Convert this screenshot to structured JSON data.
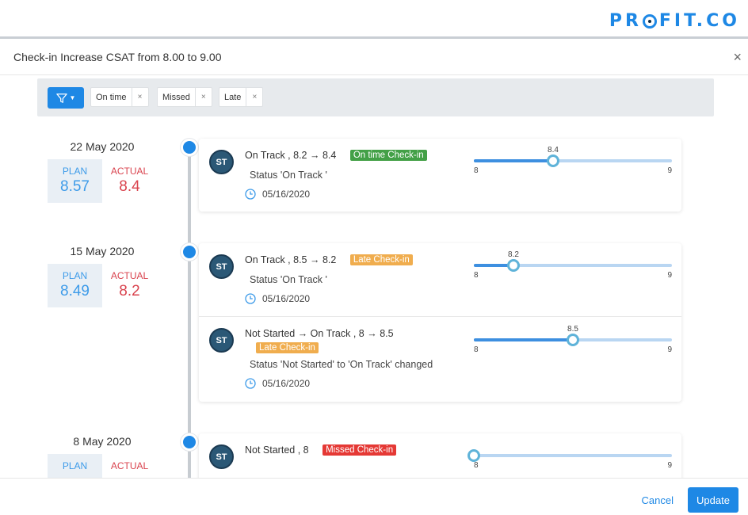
{
  "brand": {
    "logo_pre": "PR",
    "logo_post": "FIT.CO"
  },
  "modal": {
    "title": "Check-in Increase CSAT from 8.00 to 9.00",
    "close": "×"
  },
  "filters": {
    "chips": [
      {
        "label": "On time",
        "remove": "×"
      },
      {
        "label": "Missed",
        "remove": "×"
      },
      {
        "label": "Late",
        "remove": "×"
      }
    ]
  },
  "timeline": [
    {
      "date": "22 May 2020",
      "plan_label": "PLAN",
      "plan_value": "8.57",
      "actual_label": "ACTUAL",
      "actual_value": "8.4",
      "entries": [
        {
          "avatar": "ST",
          "title": "On Track , 8.2 → 8.4",
          "badge": "On time Check-in",
          "status": "Status 'On Track '",
          "date": "05/16/2020",
          "slider": {
            "min": "8",
            "max": "9",
            "value": "8.4",
            "fraction": 0.4
          }
        }
      ]
    },
    {
      "date": "15 May 2020",
      "plan_label": "PLAN",
      "plan_value": "8.49",
      "actual_label": "ACTUAL",
      "actual_value": "8.2",
      "entries": [
        {
          "avatar": "ST",
          "title": "On Track , 8.5 → 8.2",
          "badge": "Late Check-in",
          "status": "Status 'On Track '",
          "date": "05/16/2020",
          "slider": {
            "min": "8",
            "max": "9",
            "value": "8.2",
            "fraction": 0.2
          }
        },
        {
          "avatar": "ST",
          "title": "Not Started → On Track , 8 → 8.5",
          "badge": "Late Check-in",
          "status": "Status 'Not Started' to 'On Track' changed",
          "date": "05/16/2020",
          "slider": {
            "min": "8",
            "max": "9",
            "value": "8.5",
            "fraction": 0.5
          }
        }
      ]
    },
    {
      "date": "8 May 2020",
      "plan_label": "PLAN",
      "actual_label": "ACTUAL",
      "entries": [
        {
          "avatar": "ST",
          "title": "Not Started , 8",
          "badge": "Missed Check-in",
          "slider": {
            "min": "8",
            "max": "9",
            "fraction": 0.0
          }
        }
      ]
    }
  ],
  "footer": {
    "cancel": "Cancel",
    "update": "Update"
  },
  "colors": {
    "accent": "#1e88e5",
    "plan": "#3d9be9",
    "actual": "#d9434e",
    "on_time": "#43a047",
    "late": "#f0ad4e",
    "missed": "#e53935"
  }
}
